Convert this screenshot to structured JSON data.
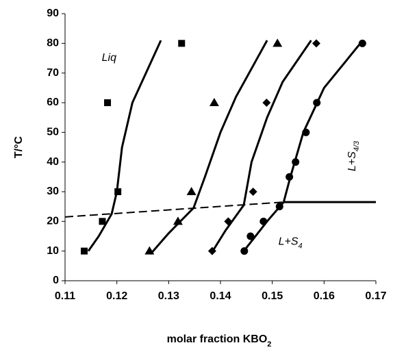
{
  "chart_data": {
    "type": "scatter",
    "xlabel": {
      "text": "molar fraction KBO",
      "sub": "2"
    },
    "ylabel": "T/°C",
    "xlim": [
      0.11,
      0.17
    ],
    "xticks": [
      0.11,
      0.12,
      0.13,
      0.14,
      0.15,
      0.16,
      0.17
    ],
    "ylim": [
      0,
      90
    ],
    "yticks": [
      0,
      10,
      20,
      30,
      40,
      50,
      60,
      70,
      80,
      90
    ],
    "color": "#000000",
    "series": [
      {
        "marker": "square",
        "x": [
          0.1137,
          0.1172,
          0.1202,
          0.1182,
          0.1325
        ],
        "values": [
          10,
          20,
          30,
          60,
          80
        ]
      },
      {
        "marker": "triangle",
        "x": [
          0.1263,
          0.1318,
          0.1344,
          0.1388,
          0.151
        ],
        "values": [
          10,
          20,
          30,
          60,
          80
        ]
      },
      {
        "marker": "diamond",
        "x": [
          0.1384,
          0.1415,
          0.1463,
          0.1489,
          0.1585
        ],
        "values": [
          10,
          20,
          30,
          60,
          80
        ]
      },
      {
        "marker": "circle",
        "x": [
          0.1446,
          0.1458,
          0.1483,
          0.1514,
          0.1533,
          0.1545,
          0.1565,
          0.1586,
          0.1674
        ],
        "values": [
          10,
          15,
          20,
          25,
          35,
          40,
          50,
          60,
          80
        ]
      }
    ],
    "curves": [
      {
        "style": "solid",
        "x": [
          0.1145,
          0.1165,
          0.119,
          0.12,
          0.121,
          0.123,
          0.1285
        ],
        "values": [
          10,
          15,
          22.5,
          30,
          45,
          60,
          81
        ]
      },
      {
        "style": "solid",
        "x": [
          0.1265,
          0.13,
          0.1348,
          0.137,
          0.14,
          0.143,
          0.149
        ],
        "values": [
          9,
          16,
          24.5,
          35,
          50,
          62,
          81
        ]
      },
      {
        "style": "solid",
        "x": [
          0.1385,
          0.141,
          0.1445,
          0.146,
          0.149,
          0.152,
          0.1575
        ],
        "values": [
          10,
          17,
          25.5,
          40,
          55,
          67,
          81
        ]
      },
      {
        "style": "solid",
        "x": [
          0.1445,
          0.149,
          0.1522,
          0.1535,
          0.156,
          0.16,
          0.167
        ],
        "values": [
          10,
          20,
          26.5,
          35,
          50,
          65,
          80
        ]
      },
      {
        "style": "dashed",
        "x": [
          0.11,
          0.1522
        ],
        "values": [
          21.5,
          26.5
        ]
      },
      {
        "style": "solid",
        "x": [
          0.1522,
          0.17
        ],
        "values": [
          26.5,
          26.5
        ]
      }
    ],
    "annotations": [
      {
        "text": "Liq",
        "x": 0.1185,
        "y": 75
      },
      {
        "text": "L+S",
        "sub": "4",
        "x": 0.1535,
        "y": 13
      },
      {
        "text": "L+S",
        "sub": "4/3",
        "x": 0.1655,
        "y": 42,
        "rotate": -90
      }
    ]
  }
}
